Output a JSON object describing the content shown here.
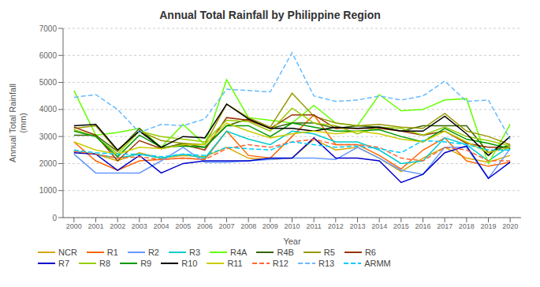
{
  "chart_data": {
    "type": "line",
    "title": "Annual Total Rainfall by Philippine Region",
    "x_label": "Year",
    "y_label": "Annual Total Rainfall\n(mm)",
    "x": [
      2000,
      2001,
      2002,
      2003,
      2004,
      2005,
      2006,
      2007,
      2008,
      2009,
      2010,
      2011,
      2012,
      2013,
      2014,
      2015,
      2016,
      2017,
      2018,
      2019,
      2020
    ],
    "xlim": [
      1999.5,
      2020.5
    ],
    "xticks": [
      2000,
      2001,
      2002,
      2003,
      2004,
      2005,
      2006,
      2007,
      2008,
      2009,
      2010,
      2011,
      2012,
      2013,
      2014,
      2015,
      2016,
      2017,
      2018,
      2019,
      2020
    ],
    "ylim": [
      0,
      7000
    ],
    "yticks": [
      0,
      1000,
      2000,
      3000,
      4000,
      5000,
      6000,
      7000
    ],
    "grid": true,
    "legend": "bottom",
    "series": [
      {
        "name": "NCR",
        "color": "#D4A800",
        "line_style": "solid",
        "values": [
          2450,
          2350,
          2100,
          2400,
          2200,
          2300,
          2250,
          2600,
          2200,
          2150,
          2200,
          2900,
          2500,
          2600,
          2200,
          1700,
          2200,
          2600,
          2200,
          2050,
          2300
        ]
      },
      {
        "name": "R1",
        "color": "#FF6600",
        "line_style": "solid",
        "values": [
          2800,
          2100,
          1750,
          2100,
          2150,
          2200,
          2150,
          3200,
          2300,
          2200,
          3000,
          3800,
          2700,
          2700,
          2300,
          1800,
          2500,
          2950,
          2100,
          1900,
          2050
        ]
      },
      {
        "name": "R2",
        "color": "#6699FF",
        "line_style": "solid",
        "values": [
          2350,
          1650,
          1650,
          1650,
          2100,
          2600,
          2050,
          2050,
          2100,
          2150,
          2200,
          2200,
          2150,
          2600,
          2200,
          1750,
          1600,
          2600,
          2600,
          1450,
          2550
        ]
      },
      {
        "name": "R3",
        "color": "#00CCCC",
        "line_style": "solid",
        "values": [
          2450,
          2350,
          2200,
          2350,
          2200,
          2350,
          2200,
          3200,
          2900,
          2700,
          3200,
          3100,
          2800,
          2800,
          2500,
          2000,
          2100,
          2950,
          2700,
          2100,
          2650
        ]
      },
      {
        "name": "R4A",
        "color": "#66FF00",
        "line_style": "solid",
        "values": [
          4700,
          3050,
          3150,
          3300,
          2600,
          3450,
          2700,
          5100,
          3700,
          3600,
          3500,
          4150,
          3500,
          3400,
          4550,
          3950,
          4000,
          4350,
          4400,
          2000,
          3450
        ]
      },
      {
        "name": "R4B",
        "color": "#336600",
        "line_style": "solid",
        "values": [
          3050,
          3050,
          2450,
          3300,
          2550,
          2750,
          2600,
          3400,
          3650,
          3300,
          3500,
          3500,
          3300,
          3400,
          3350,
          3200,
          3400,
          3400,
          3400,
          2400,
          2700
        ]
      },
      {
        "name": "R5",
        "color": "#999900",
        "line_style": "solid",
        "values": [
          3300,
          3400,
          2450,
          3200,
          2850,
          2750,
          2700,
          4200,
          3700,
          3350,
          4600,
          3750,
          3500,
          3400,
          3450,
          3350,
          3300,
          3850,
          3200,
          3000,
          2700
        ]
      },
      {
        "name": "R6",
        "color": "#993300",
        "line_style": "solid",
        "values": [
          3350,
          3050,
          2100,
          2850,
          2550,
          2700,
          2500,
          3700,
          3600,
          3300,
          3800,
          3800,
          3300,
          3300,
          3300,
          3200,
          3050,
          3200,
          2750,
          2600,
          2600
        ]
      },
      {
        "name": "R7",
        "color": "#0000CC",
        "line_style": "solid",
        "values": [
          2400,
          2350,
          1750,
          2300,
          1650,
          2000,
          2100,
          2100,
          2100,
          2200,
          2200,
          2950,
          2200,
          2200,
          2100,
          1300,
          1600,
          2400,
          2650,
          1450,
          2050
        ]
      },
      {
        "name": "R8",
        "color": "#99CC00",
        "line_style": "solid",
        "values": [
          3250,
          3000,
          2350,
          3200,
          3000,
          2900,
          2800,
          3600,
          3550,
          3200,
          4050,
          3500,
          3400,
          3100,
          3350,
          3300,
          3050,
          3350,
          3000,
          2850,
          2650
        ]
      },
      {
        "name": "R9",
        "color": "#009900",
        "line_style": "solid",
        "values": [
          3200,
          3000,
          2250,
          3050,
          2600,
          2650,
          2600,
          3400,
          3400,
          3000,
          3500,
          3350,
          3200,
          3200,
          3250,
          3000,
          2800,
          3300,
          2900,
          2750,
          2550
        ]
      },
      {
        "name": "R10",
        "color": "#000000",
        "line_style": "solid",
        "values": [
          3400,
          3450,
          2500,
          3200,
          2600,
          3000,
          2950,
          4200,
          3650,
          3300,
          3300,
          3200,
          3350,
          3300,
          3350,
          3200,
          3200,
          3750,
          3100,
          2300,
          3000
        ]
      },
      {
        "name": "R11",
        "color": "#CCCC00",
        "line_style": "solid",
        "values": [
          2800,
          2500,
          2350,
          2600,
          2550,
          2700,
          2700,
          3500,
          3200,
          2950,
          3100,
          3200,
          3100,
          3200,
          3100,
          2900,
          2800,
          3200,
          2800,
          2400,
          2600
        ]
      },
      {
        "name": "R12",
        "color": "#FF6633",
        "line_style": "dashed",
        "values": [
          2450,
          2350,
          2200,
          2250,
          2150,
          2200,
          2150,
          2550,
          2700,
          2600,
          2800,
          2900,
          2700,
          2700,
          2600,
          2200,
          2100,
          2600,
          2500,
          2100,
          2100
        ]
      },
      {
        "name": "R13",
        "color": "#66BBFF",
        "line_style": "dashed",
        "values": [
          4450,
          4550,
          4000,
          3150,
          3450,
          3400,
          3650,
          4750,
          4700,
          4650,
          6100,
          4500,
          4300,
          4350,
          4500,
          4350,
          4500,
          5050,
          4300,
          4350,
          2900
        ]
      },
      {
        "name": "ARMM",
        "color": "#00CCFF",
        "line_style": "dashed",
        "values": [
          2500,
          2400,
          2350,
          2350,
          2250,
          2350,
          2300,
          2600,
          2550,
          2500,
          2800,
          2700,
          2600,
          2650,
          2550,
          2400,
          2850,
          2800,
          2700,
          2500,
          2500
        ]
      }
    ]
  }
}
